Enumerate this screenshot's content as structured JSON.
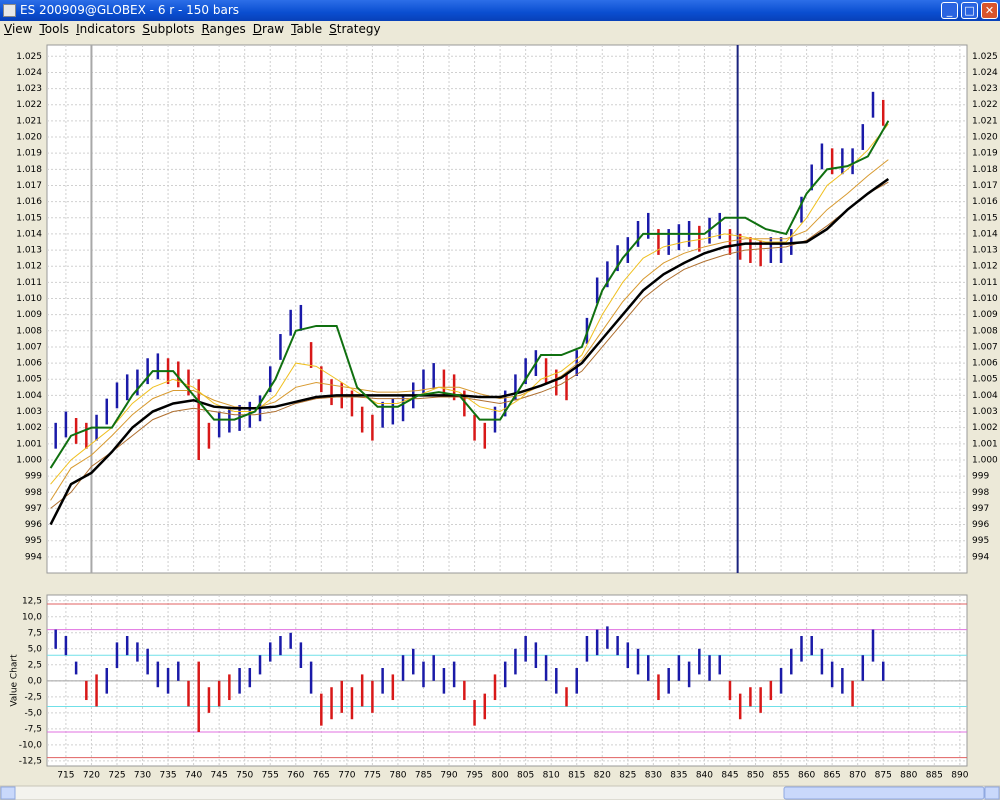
{
  "window": {
    "title": "ES 200909@GLOBEX - 6 r - 150 bars",
    "menu": [
      "View",
      "Tools",
      "Indicators",
      "Subplots",
      "Ranges",
      "Draw",
      "Table",
      "Strategy"
    ]
  },
  "chart_data": [
    {
      "type": "range_bar",
      "xlim": [
        711.3,
        891.4
      ],
      "ylim": [
        993,
        1025.7
      ],
      "yticks": [
        994,
        995,
        996,
        997,
        998,
        999,
        {
          "value": 1000,
          "label": "1.000"
        },
        {
          "value": 1001,
          "label": "1.001"
        },
        {
          "value": 1002,
          "label": "1.002"
        },
        {
          "value": 1003,
          "label": "1.003"
        },
        {
          "value": 1004,
          "label": "1.004"
        },
        {
          "value": 1005,
          "label": "1.005"
        },
        {
          "value": 1006,
          "label": "1.006"
        },
        {
          "value": 1007,
          "label": "1.007"
        },
        {
          "value": 1008,
          "label": "1.008"
        },
        {
          "value": 1009,
          "label": "1.009"
        },
        {
          "value": 1010,
          "label": "1.010"
        },
        {
          "value": 1011,
          "label": "1.011"
        },
        {
          "value": 1012,
          "label": "1.012"
        },
        {
          "value": 1013,
          "label": "1.013"
        },
        {
          "value": 1014,
          "label": "1.014"
        },
        {
          "value": 1015,
          "label": "1.015"
        },
        {
          "value": 1016,
          "label": "1.016"
        },
        {
          "value": 1017,
          "label": "1.017"
        },
        {
          "value": 1018,
          "label": "1.018"
        },
        {
          "value": 1019,
          "label": "1.019"
        },
        {
          "value": 1020,
          "label": "1.020"
        },
        {
          "value": 1021,
          "label": "1.021"
        },
        {
          "value": 1022,
          "label": "1.022"
        },
        {
          "value": 1023,
          "label": "1.023"
        },
        {
          "value": 1024,
          "label": "1.024"
        },
        {
          "value": 1025,
          "label": "1.025"
        }
      ],
      "right_axis": true,
      "grid": true,
      "up_color": "#1a1aa8",
      "down_color": "#d81818",
      "x": [
        713,
        715,
        717,
        719,
        721,
        723,
        725,
        727,
        729,
        731,
        733,
        735,
        737,
        739,
        741,
        743,
        745,
        747,
        749,
        751,
        753,
        755,
        757,
        759,
        761,
        763,
        765,
        767,
        769,
        771,
        773,
        775,
        777,
        779,
        781,
        783,
        785,
        787,
        789,
        791,
        793,
        795,
        797,
        799,
        801,
        803,
        805,
        807,
        809,
        811,
        813,
        815,
        817,
        819,
        821,
        823,
        825,
        827,
        829,
        831,
        833,
        835,
        837,
        839,
        841,
        843,
        845,
        847,
        849,
        851,
        853,
        855,
        857,
        859,
        861,
        863,
        865,
        867,
        869,
        871,
        873,
        875
      ],
      "high": [
        1002.3,
        1003,
        1002.6,
        1002.3,
        1002.8,
        1003.8,
        1004.8,
        1005.3,
        1005.6,
        1006.3,
        1006.6,
        1006.3,
        1006.1,
        1005.6,
        1005,
        1002.3,
        1003,
        1003.3,
        1003.4,
        1003.6,
        1004,
        1005.8,
        1007.8,
        1009.3,
        1009.6,
        1007.3,
        1005.8,
        1005,
        1004.8,
        1004.3,
        1003.3,
        1002.8,
        1003.6,
        1003.8,
        1004,
        1004.8,
        1005.6,
        1006,
        1005.6,
        1005.3,
        1004.3,
        1002.8,
        1002.3,
        1003.3,
        1004.3,
        1005.3,
        1006.3,
        1006.8,
        1006.3,
        1005.6,
        1005.3,
        1006.8,
        1008.8,
        1011.3,
        1012.3,
        1013.3,
        1013.8,
        1014.8,
        1015.3,
        1014.3,
        1014.3,
        1014.6,
        1014.8,
        1014.5,
        1015,
        1015.3,
        1014.3,
        1014,
        1013.8,
        1013.6,
        1013.8,
        1013.8,
        1014.3,
        1016.3,
        1018.3,
        1019.6,
        1019.3,
        1019.3,
        1019.3,
        1020.8,
        1022.8,
        1022.3
      ],
      "low": [
        1000.7,
        1001.4,
        1001,
        1000.7,
        1001.2,
        1002.2,
        1003.2,
        1003.7,
        1004,
        1004.7,
        1005,
        1004.7,
        1004.5,
        1004,
        1000,
        1000.7,
        1001.4,
        1001.7,
        1001.8,
        1002,
        1002.4,
        1004.2,
        1006.2,
        1007.7,
        1008,
        1005.7,
        1004.2,
        1003.4,
        1003.2,
        1002.7,
        1001.7,
        1001.2,
        1002,
        1002.2,
        1002.4,
        1003.2,
        1004,
        1004.4,
        1004,
        1003.7,
        1002.7,
        1001.2,
        1000.7,
        1001.7,
        1002.7,
        1003.7,
        1004.7,
        1005.2,
        1004.7,
        1004,
        1003.7,
        1005.2,
        1007.2,
        1009.7,
        1010.7,
        1011.7,
        1012.2,
        1013.2,
        1013.7,
        1012.7,
        1012.7,
        1013,
        1013.2,
        1012.9,
        1013.4,
        1013.7,
        1012.7,
        1012.4,
        1012.2,
        1012,
        1012.2,
        1012.2,
        1012.7,
        1014.7,
        1016.7,
        1018,
        1017.7,
        1017.7,
        1017.7,
        1019.2,
        1021.2,
        1020.7
      ],
      "line_x": [
        712,
        716,
        720,
        724,
        728,
        732,
        736,
        740,
        744,
        748,
        752,
        756,
        760,
        764,
        768,
        772,
        776,
        780,
        784,
        788,
        792,
        796,
        800,
        804,
        808,
        812,
        816,
        820,
        824,
        828,
        832,
        836,
        840,
        844,
        848,
        852,
        856,
        860,
        864,
        868,
        872,
        876
      ],
      "lines": [
        {
          "color": "#b07030",
          "width": 1,
          "values": [
            997,
            998,
            999.6,
            1000.5,
            1001.5,
            1002.5,
            1003,
            1003.2,
            1003,
            1002.8,
            1002.8,
            1003,
            1003.5,
            1003.8,
            1003.9,
            1003.9,
            1003.8,
            1003.8,
            1003.8,
            1003.9,
            1003.9,
            1003.7,
            1003.5,
            1003.8,
            1004.2,
            1004.7,
            1005.5,
            1007,
            1008.5,
            1010,
            1011,
            1011.8,
            1012.3,
            1012.7,
            1013,
            1013.1,
            1013.2,
            1013.6,
            1014.5,
            1015.5,
            1016.5,
            1017.2
          ]
        },
        {
          "color": "#d89a30",
          "width": 1,
          "values": [
            997.5,
            999.5,
            1000.3,
            1001.5,
            1002.8,
            1003.8,
            1004.3,
            1004.3,
            1003.7,
            1003.3,
            1003.2,
            1003.6,
            1004.5,
            1004.8,
            1004.6,
            1004.4,
            1004.2,
            1004.2,
            1004.3,
            1004.5,
            1004.5,
            1004.1,
            1003.8,
            1004,
            1004.6,
            1005.2,
            1006.2,
            1008,
            1009.8,
            1011.2,
            1012.2,
            1012.8,
            1013.2,
            1013.5,
            1013.7,
            1013.7,
            1013.7,
            1014.2,
            1015.5,
            1016.5,
            1017.6,
            1018.6
          ]
        },
        {
          "color": "#f0c020",
          "width": 1,
          "values": [
            998.5,
            1000,
            1001,
            1002,
            1003.5,
            1004.5,
            1005,
            1004.5,
            1003.5,
            1003,
            1003,
            1004,
            1006,
            1005.8,
            1005,
            1004.2,
            1003.5,
            1003.5,
            1004,
            1004.5,
            1004.2,
            1003.3,
            1003,
            1003.8,
            1005,
            1005.5,
            1006.5,
            1009,
            1011,
            1012.5,
            1013.2,
            1013.5,
            1013.7,
            1014,
            1013.8,
            1013.5,
            1013.5,
            1015,
            1017,
            1018,
            1019.2,
            1020.8
          ]
        },
        {
          "color": "#000000",
          "width": 2.5,
          "values": [
            996,
            998.5,
            999.2,
            1000.5,
            1002,
            1003,
            1003.5,
            1003.7,
            1003.3,
            1003.2,
            1003.2,
            1003.3,
            1003.6,
            1003.9,
            1004,
            1004,
            1004,
            1004,
            1004,
            1004,
            1004,
            1003.9,
            1003.9,
            1004.2,
            1004.6,
            1005.1,
            1006,
            1007.5,
            1009,
            1010.5,
            1011.5,
            1012.2,
            1012.8,
            1013.2,
            1013.4,
            1013.4,
            1013.4,
            1013.5,
            1014.3,
            1015.5,
            1016.5,
            1017.4
          ]
        },
        {
          "color": "#107010",
          "width": 2,
          "values": [
            999.5,
            1001.5,
            1002,
            1002,
            1004,
            1005.5,
            1005.5,
            1004,
            1002.5,
            1002.5,
            1003,
            1005,
            1008,
            1008.3,
            1008.3,
            1004.5,
            1003.3,
            1003.3,
            1004,
            1004.2,
            1004,
            1002.5,
            1002.5,
            1004.5,
            1006.5,
            1006.5,
            1007,
            1010.5,
            1012.5,
            1014,
            1014,
            1014,
            1014,
            1015,
            1015,
            1014.3,
            1014,
            1016.5,
            1018,
            1018.2,
            1018.8,
            1021
          ]
        }
      ],
      "markers": [
        {
          "x": 720,
          "color": "#a8a8a8"
        },
        {
          "x": 846.5,
          "color": "#1a237e"
        }
      ]
    },
    {
      "type": "range_bar",
      "ylabel": "Value Chart",
      "xlim": [
        711.3,
        891.4
      ],
      "ylim": [
        -13.3,
        13.4
      ],
      "xticks": [
        715,
        720,
        725,
        730,
        735,
        740,
        745,
        750,
        755,
        760,
        765,
        770,
        775,
        780,
        785,
        790,
        795,
        800,
        805,
        810,
        815,
        820,
        825,
        830,
        835,
        840,
        845,
        850,
        855,
        860,
        865,
        870,
        875,
        880,
        885,
        890
      ],
      "yticks": [
        {
          "value": 12.5,
          "label": "12,5"
        },
        {
          "value": 10,
          "label": "10,0"
        },
        {
          "value": 7.5,
          "label": "7,5"
        },
        {
          "value": 5,
          "label": "5,0"
        },
        {
          "value": 2.5,
          "label": "2,5"
        },
        {
          "value": 0,
          "label": "0,0"
        },
        {
          "value": -2.5,
          "label": "-2,5"
        },
        {
          "value": -5,
          "label": "-5,0"
        },
        {
          "value": -7.5,
          "label": "-7,5"
        },
        {
          "value": -10,
          "label": "-10,0"
        },
        {
          "value": -12.5,
          "label": "-12,5"
        }
      ],
      "grid": true,
      "up_color": "#1a1aa8",
      "down_color": "#d81818",
      "ref_lines": [
        {
          "value": 12,
          "color": "#e06060"
        },
        {
          "value": 8,
          "color": "#e070e0"
        },
        {
          "value": 4,
          "color": "#70e0e8"
        },
        {
          "value": 0,
          "color": "#a0a0a0"
        },
        {
          "value": -4,
          "color": "#70e0e8"
        },
        {
          "value": -8,
          "color": "#e070e0"
        },
        {
          "value": -12,
          "color": "#e06060"
        }
      ],
      "x": [
        713,
        715,
        717,
        719,
        721,
        723,
        725,
        727,
        729,
        731,
        733,
        735,
        737,
        739,
        741,
        743,
        745,
        747,
        749,
        751,
        753,
        755,
        757,
        759,
        761,
        763,
        765,
        767,
        769,
        771,
        773,
        775,
        777,
        779,
        781,
        783,
        785,
        787,
        789,
        791,
        793,
        795,
        797,
        799,
        801,
        803,
        805,
        807,
        809,
        811,
        813,
        815,
        817,
        819,
        821,
        823,
        825,
        827,
        829,
        831,
        833,
        835,
        837,
        839,
        841,
        843,
        845,
        847,
        849,
        851,
        853,
        855,
        857,
        859,
        861,
        863,
        865,
        867,
        869,
        871,
        873,
        875
      ],
      "high": [
        8,
        7,
        3,
        0,
        1,
        2,
        6,
        7,
        6,
        5,
        3,
        2,
        3,
        0,
        3,
        -1,
        0,
        1,
        2,
        2,
        4,
        6,
        7,
        7.5,
        6,
        3,
        -2,
        -1,
        0,
        -1,
        1,
        0,
        2,
        1,
        4,
        5,
        3,
        4,
        2,
        3,
        0,
        -3,
        -2,
        1,
        3,
        5,
        7,
        6,
        4,
        2,
        -1,
        2,
        7,
        8,
        8.5,
        7,
        6,
        5,
        4,
        1,
        2,
        4,
        3,
        5,
        4,
        4,
        0,
        -2,
        -1,
        -1,
        0,
        2,
        5,
        7,
        7,
        5,
        3,
        2,
        0,
        4,
        8,
        3
      ],
      "low": [
        5,
        4,
        1,
        -3,
        -4,
        -2,
        2,
        4,
        3,
        1,
        -1,
        -2,
        0,
        -4,
        -8,
        -5,
        -4,
        -3,
        -2,
        -1,
        1,
        3,
        4,
        5,
        2,
        -2,
        -7,
        -6,
        -5,
        -6,
        -4,
        -5,
        -2,
        -3,
        0,
        1,
        -1,
        0,
        -2,
        -1,
        -3,
        -7,
        -6,
        -3,
        -1,
        1,
        3,
        2,
        0,
        -2,
        -4,
        -2,
        3,
        4,
        5,
        4,
        2,
        1,
        0,
        -3,
        -2,
        0,
        -1,
        1,
        0,
        1,
        -3,
        -6,
        -4,
        -5,
        -3,
        -2,
        1,
        3,
        4,
        1,
        -1,
        -2,
        -4,
        0,
        3,
        0
      ]
    }
  ]
}
